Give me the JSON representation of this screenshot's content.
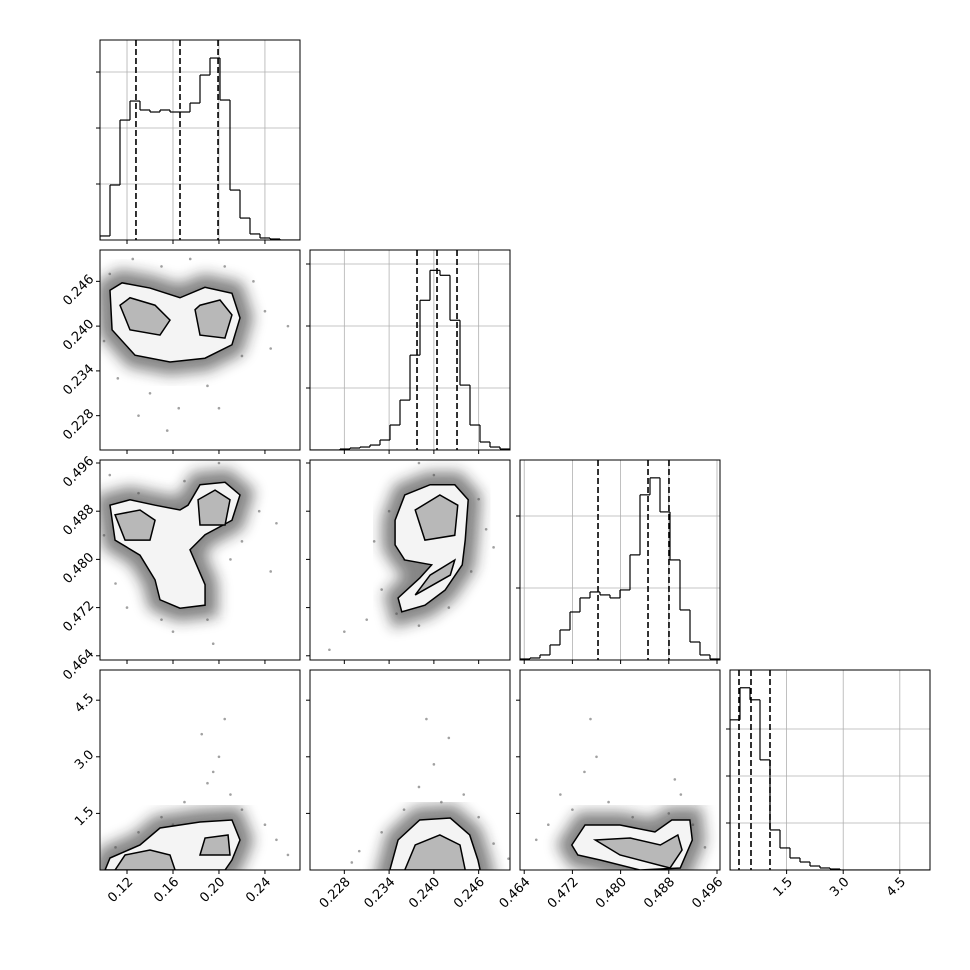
{
  "chart_data": {
    "type": "corner",
    "params": [
      {
        "lim": [
          0.0965,
          0.2705
        ],
        "ticks": [
          {
            "value": 0.12,
            "label": "0.12"
          },
          {
            "value": 0.16,
            "label": "0.16"
          },
          {
            "value": 0.2,
            "label": "0.20"
          },
          {
            "value": 0.24,
            "label": "0.24"
          }
        ],
        "bins": [
          0.0965,
          0.1052,
          0.1139,
          0.1226,
          0.1313,
          0.14,
          0.1487,
          0.1574,
          0.1661,
          0.1748,
          0.1835,
          0.1922,
          0.2009,
          0.2096,
          0.2183,
          0.227,
          0.2357,
          0.2444,
          0.2531,
          0.2618,
          0.2705
        ],
        "counts": [
          36,
          491,
          1071,
          1241,
          1161,
          1143,
          1161,
          1143,
          1143,
          1223,
          1473,
          1625,
          1250,
          446,
          196,
          54,
          18,
          9,
          0,
          0
        ],
        "count_lim": [
          0,
          1786
        ],
        "count_ticks": [
          500,
          1000,
          1500
        ],
        "quantiles": [
          0.1278,
          0.1661,
          0.1992
        ]
      },
      {
        "lim": [
          0.2234,
          0.2502
        ],
        "ticks": [
          0.228,
          0.234,
          {
            "value": 0.24,
            "label": "0.240"
          },
          0.246
        ],
        "bins": [
          0.2234,
          0.22474,
          0.22608,
          0.22742,
          0.22876,
          0.2301,
          0.23144,
          0.23278,
          0.23412,
          0.23546,
          0.2368,
          0.23814,
          0.23948,
          0.24082,
          0.24216,
          0.2435,
          0.24484,
          0.24618,
          0.24752,
          0.24886,
          0.2502
        ],
        "counts": [
          0,
          0,
          0,
          16,
          32,
          48,
          80,
          161,
          403,
          805,
          1530,
          2415,
          2898,
          2818,
          2093,
          1047,
          403,
          129,
          48,
          16
        ],
        "count_lim": [
          0,
          3226
        ],
        "count_ticks": [
          1000,
          2000,
          3000
        ],
        "quantiles": [
          0.23774,
          0.24042,
          0.2431
        ]
      },
      {
        "lim": [
          0.4633,
          0.4965
        ],
        "ticks": [
          0.464,
          0.472,
          {
            "value": 0.48,
            "label": "0.480"
          },
          0.488,
          0.496
        ],
        "bins": [
          0.4633,
          0.46496,
          0.46662,
          0.46828,
          0.46994,
          0.4716,
          0.47326,
          0.47492,
          0.47658,
          0.47824,
          0.4799,
          0.48156,
          0.48322,
          0.48488,
          0.48654,
          0.4882,
          0.48986,
          0.49152,
          0.49318,
          0.49484,
          0.4965
        ],
        "counts": [
          14,
          28,
          70,
          209,
          417,
          667,
          862,
          945,
          904,
          862,
          973,
          1460,
          2294,
          2530,
          2057,
          1390,
          695,
          250,
          70,
          14
        ],
        "count_lim": [
          0,
          2778
        ],
        "count_ticks": [
          1000,
          2000
        ],
        "quantiles": [
          0.47625,
          0.48455,
          0.48803
        ]
      },
      {
        "lim": [
          0,
          5.3
        ],
        "ticks": [
          1.5,
          {
            "value": 3,
            "label": "3.0"
          },
          4.5
        ],
        "bins": [
          0,
          0.265,
          0.53,
          0.795,
          1.06,
          1.325,
          1.59,
          1.855,
          2.12,
          2.385,
          2.65,
          2.915,
          3.18,
          3.445,
          3.71,
          3.975,
          4.24,
          4.505,
          4.77,
          5.035,
          5.3
        ],
        "counts": [
          3195,
          3877,
          3621,
          2343,
          852,
          469,
          256,
          170,
          85,
          43,
          21,
          0,
          0,
          0,
          0,
          0,
          0,
          0,
          0,
          0
        ],
        "count_lim": [
          0,
          4255
        ],
        "count_ticks": [
          1000,
          2000,
          3000
        ],
        "quantiles": [
          0.2385,
          0.5565,
          1.06
        ]
      }
    ],
    "pairs": [
      {
        "points": {
          "x": [
            0.105,
            0.112,
            0.125,
            0.14,
            0.15,
            0.165,
            0.175,
            0.19,
            0.205,
            0.22,
            0.23,
            0.24,
            0.245,
            0.13,
            0.2,
            0.1,
            0.26,
            0.155
          ],
          "y": [
            0.247,
            0.233,
            0.249,
            0.231,
            0.248,
            0.229,
            0.249,
            0.232,
            0.248,
            0.236,
            0.246,
            0.242,
            0.237,
            0.228,
            0.229,
            0.238,
            0.24,
            0.226
          ]
        },
        "contours": [
          {
            "x": [
              0.1052,
              0.107,
              0.127,
              0.1574,
              0.1878,
              0.2113,
              0.2183,
              0.2113,
              0.1878,
              0.1661,
              0.14,
              0.1157
            ],
            "y": [
              0.2448,
              0.2395,
              0.2361,
              0.2352,
              0.2357,
              0.2375,
              0.2411,
              0.2444,
              0.2452,
              0.2438,
              0.2451,
              0.2458
            ]
          },
          {
            "x": [
              0.1139,
              0.1226,
              0.1487,
              0.1574,
              0.1444,
              0.1226
            ],
            "y": [
              0.2428,
              0.2395,
              0.2388,
              0.2408,
              0.2428,
              0.2438
            ]
          },
          {
            "x": [
              0.1792,
              0.1835,
              0.2052,
              0.2113,
              0.2009,
              0.1835
            ],
            "y": [
              0.2422,
              0.2388,
              0.2384,
              0.2415,
              0.2435,
              0.2428
            ]
          }
        ]
      },
      {
        "points": {
          "x": [
            0.105,
            0.11,
            0.12,
            0.13,
            0.15,
            0.16,
            0.17,
            0.175,
            0.19,
            0.2,
            0.21,
            0.22,
            0.235,
            0.25,
            0.14,
            0.195,
            0.1,
            0.245
          ],
          "y": [
            0.494,
            0.476,
            0.472,
            0.491,
            0.47,
            0.468,
            0.493,
            0.474,
            0.47,
            0.496,
            0.48,
            0.483,
            0.488,
            0.486,
            0.486,
            0.466,
            0.484,
            0.478
          ]
        },
        "contours": [
          {
            "x": [
              0.1052,
              0.1096,
              0.1313,
              0.1444,
              0.1487,
              0.1661,
              0.1879,
              0.1879,
              0.1748,
              0.1879,
              0.2113,
              0.2183,
              0.2053,
              0.1835,
              0.1731,
              0.1661,
              0.1444,
              0.1226
            ],
            "y": [
              0.489,
              0.4832,
              0.4807,
              0.4766,
              0.4733,
              0.4719,
              0.4724,
              0.4758,
              0.4816,
              0.4841,
              0.4865,
              0.4907,
              0.4928,
              0.4924,
              0.489,
              0.4882,
              0.489,
              0.4899
            ]
          },
          {
            "x": [
              0.1096,
              0.1183,
              0.14,
              0.1444,
              0.1313
            ],
            "y": [
              0.4874,
              0.4832,
              0.4832,
              0.4865,
              0.4882
            ]
          },
          {
            "x": [
              0.1818,
              0.1835,
              0.2053,
              0.2096,
              0.1966
            ],
            "y": [
              0.4899,
              0.4857,
              0.4857,
              0.4899,
              0.4915
            ]
          }
        ]
      },
      {
        "points": {
          "x": [
            0.228,
            0.231,
            0.233,
            0.235,
            0.236,
            0.234,
            0.238,
            0.24,
            0.242,
            0.245,
            0.246,
            0.247,
            0.232,
            0.238,
            0.248,
            0.226
          ],
          "y": [
            0.468,
            0.47,
            0.475,
            0.471,
            0.48,
            0.488,
            0.469,
            0.494,
            0.472,
            0.478,
            0.49,
            0.485,
            0.483,
            0.496,
            0.482,
            0.465
          ]
        },
        "contours": [
          {
            "x": [
              0.2348,
              0.2361,
              0.2395,
              0.2428,
              0.2446,
              0.2442,
              0.2438,
              0.2415,
              0.2388,
              0.2357,
              0.2352,
              0.2381,
              0.2397,
              0.2361,
              0.2348
            ],
            "y": [
              0.4865,
              0.4907,
              0.4924,
              0.4924,
              0.4899,
              0.4832,
              0.4791,
              0.4749,
              0.4724,
              0.4713,
              0.4736,
              0.4769,
              0.4791,
              0.4799,
              0.4824
            ]
          },
          {
            "x": [
              0.2375,
              0.2388,
              0.2428,
              0.2432,
              0.2408
            ],
            "y": [
              0.4882,
              0.4832,
              0.484,
              0.489,
              0.4907
            ]
          },
          {
            "x": [
              0.2375,
              0.2422,
              0.2428,
              0.2395
            ],
            "y": [
              0.4741,
              0.4774,
              0.4799,
              0.4774
            ]
          }
        ]
      },
      {
        "points": {
          "x": [
            0.11,
            0.13,
            0.15,
            0.17,
            0.19,
            0.2,
            0.21,
            0.22,
            0.24,
            0.25,
            0.185,
            0.205,
            0.16,
            0.12,
            0.26,
            0.195
          ],
          "y": [
            0.6,
            1.0,
            1.4,
            1.8,
            2.3,
            3.0,
            2.0,
            1.6,
            1.2,
            0.8,
            3.6,
            4.0,
            1.2,
            0.3,
            0.4,
            2.6
          ]
        },
        "contours": [
          {
            "x": [
              0.1009,
              0.1052,
              0.1313,
              0.1487,
              0.1835,
              0.2113,
              0.2183,
              0.2113,
              0.2053
            ],
            "y": [
              0,
              0.318,
              0.663,
              1.113,
              1.272,
              1.325,
              0.795,
              0.265,
              0
            ]
          },
          {
            "x": [
              0.1096,
              0.1183,
              0.14,
              0.1574,
              0.1618
            ],
            "y": [
              0,
              0.398,
              0.53,
              0.398,
              0
            ]
          },
          {
            "x": [
              0.1835,
              0.1879,
              0.2079,
              0.2096
            ],
            "y": [
              0.398,
              0.848,
              0.928,
              0.398
            ]
          }
        ]
      },
      {
        "points": {
          "x": [
            0.23,
            0.233,
            0.236,
            0.238,
            0.24,
            0.242,
            0.244,
            0.246,
            0.248,
            0.239,
            0.235,
            0.25,
            0.241,
            0.229
          ],
          "y": [
            0.5,
            1.0,
            1.6,
            2.2,
            2.8,
            3.5,
            2.0,
            1.4,
            0.7,
            4.0,
            0.3,
            0.3,
            1.8,
            0.2
          ]
        },
        "contours": [
          {
            "x": [
              0.2341,
              0.2352,
              0.2381,
              0.2422,
              0.2448,
              0.2459,
              0.2462
            ],
            "y": [
              0,
              0.795,
              1.325,
              1.378,
              0.928,
              0.265,
              0
            ]
          },
          {
            "x": [
              0.2361,
              0.2375,
              0.2408,
              0.2435,
              0.2442
            ],
            "y": [
              0,
              0.663,
              0.928,
              0.663,
              0
            ]
          }
        ]
      },
      {
        "points": {
          "x": [
            0.468,
            0.47,
            0.472,
            0.474,
            0.476,
            0.478,
            0.48,
            0.484,
            0.488,
            0.49,
            0.492,
            0.494,
            0.475,
            0.466,
            0.482,
            0.489
          ],
          "y": [
            1.2,
            2.0,
            1.6,
            2.6,
            3.0,
            1.8,
            1.0,
            0.9,
            1.5,
            2.0,
            1.2,
            0.6,
            4.0,
            0.8,
            1.4,
            2.4
          ]
        },
        "contours": [
          {
            "x": [
              0.4719,
              0.4741,
              0.4799,
              0.4857,
              0.4885,
              0.4915,
              0.4919,
              0.4899,
              0.4832,
              0.4766,
              0.4729
            ],
            "y": [
              0.663,
              1.193,
              1.193,
              1.007,
              1.325,
              1.325,
              0.795,
              0.053,
              0,
              0.265,
              0.398
            ]
          },
          {
            "x": [
              0.4758,
              0.4816,
              0.4866,
              0.4895,
              0.4902,
              0.4882,
              0.4799
            ],
            "y": [
              0.795,
              0.848,
              0.663,
              0.928,
              0.53,
              0.053,
              0.398
            ]
          }
        ]
      }
    ]
  }
}
